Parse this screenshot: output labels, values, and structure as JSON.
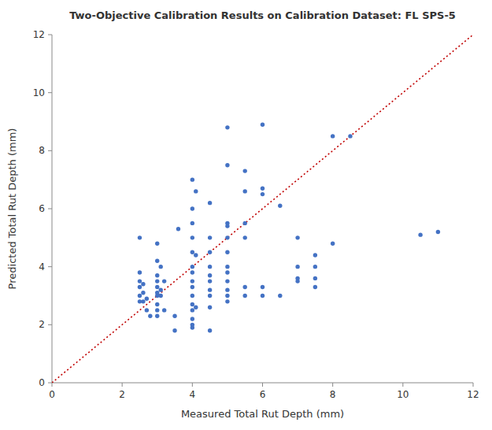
{
  "chart_data": {
    "type": "scatter",
    "title": "Two-Objective Calibration Results on Calibration Dataset: FL SPS-5",
    "xlabel": "Measured Total Rut Depth (mm)",
    "ylabel": "Predicted Total Rut Depth (mm)",
    "xlim": [
      0,
      12
    ],
    "ylim": [
      0,
      12
    ],
    "xticks": [
      0,
      2,
      4,
      6,
      8,
      10,
      12
    ],
    "yticks": [
      0,
      2,
      4,
      6,
      8,
      10,
      12
    ],
    "grid": false,
    "series": [
      {
        "type": "scatter",
        "color": "#4472C4",
        "marker": "circle",
        "x": [
          2.5,
          2.5,
          2.5,
          2.5,
          2.5,
          2.5,
          2.6,
          2.6,
          2.6,
          2.7,
          2.7,
          2.8,
          3.0,
          3.0,
          3.0,
          3.0,
          3.0,
          3.0,
          3.0,
          3.0,
          3.0,
          3.0,
          3.1,
          3.1,
          3.1,
          3.2,
          3.2,
          3.5,
          3.5,
          3.6,
          4.0,
          4.0,
          4.0,
          4.0,
          4.0,
          4.0,
          4.0,
          4.0,
          4.0,
          4.0,
          4.0,
          4.0,
          4.0,
          4.0,
          4.0,
          4.1,
          4.1,
          4.1,
          4.5,
          4.5,
          4.5,
          4.5,
          4.5,
          4.5,
          4.5,
          4.5,
          4.5,
          4.5,
          5.0,
          5.0,
          5.0,
          5.0,
          5.0,
          5.0,
          5.0,
          5.0,
          5.0,
          5.0,
          5.0,
          5.0,
          5.5,
          5.5,
          5.5,
          5.5,
          5.5,
          5.5,
          6.0,
          6.0,
          6.0,
          6.0,
          6.0,
          6.5,
          6.5,
          7.0,
          7.0,
          7.0,
          7.0,
          7.5,
          7.5,
          7.5,
          7.5,
          8.0,
          8.0,
          8.5,
          10.5,
          11.0
        ],
        "values": [
          2.8,
          3.0,
          3.3,
          3.5,
          3.8,
          5.0,
          2.8,
          3.1,
          3.4,
          2.5,
          2.9,
          2.3,
          2.3,
          2.5,
          2.7,
          3.0,
          3.1,
          3.3,
          3.5,
          3.7,
          4.2,
          4.8,
          3.0,
          3.2,
          4.0,
          2.5,
          3.5,
          1.8,
          2.3,
          5.3,
          1.9,
          2.0,
          2.2,
          2.5,
          2.7,
          3.0,
          3.3,
          3.5,
          3.8,
          4.0,
          4.5,
          5.0,
          5.5,
          6.0,
          7.0,
          2.6,
          4.4,
          6.6,
          1.8,
          2.6,
          3.0,
          3.2,
          3.5,
          3.7,
          4.0,
          4.5,
          5.0,
          6.2,
          2.8,
          3.0,
          3.2,
          3.5,
          3.8,
          4.0,
          4.5,
          5.0,
          5.5,
          5.4,
          7.5,
          8.8,
          3.0,
          3.3,
          5.0,
          5.5,
          6.6,
          7.3,
          3.0,
          3.3,
          6.5,
          6.7,
          8.9,
          6.1,
          3.0,
          3.5,
          3.6,
          4.0,
          5.0,
          3.3,
          3.6,
          4.0,
          4.4,
          4.8,
          8.5,
          8.5,
          5.1,
          5.2
        ]
      },
      {
        "type": "line",
        "color": "#C00000",
        "line_style": "dotted",
        "x": [
          0,
          12
        ],
        "values": [
          0,
          12
        ]
      }
    ]
  }
}
